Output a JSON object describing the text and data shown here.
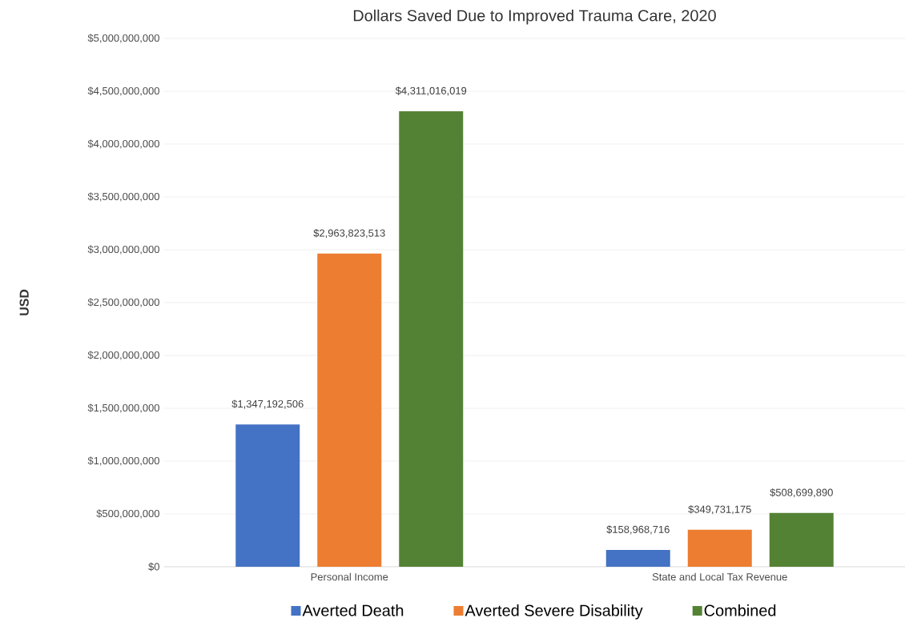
{
  "chart_data": {
    "type": "bar",
    "title": "Dollars Saved Due to Improved Trauma Care, 2020",
    "ylabel": "USD",
    "categories": [
      "Personal Income",
      "State and Local Tax Revenue"
    ],
    "series": [
      {
        "name": "Averted Death",
        "color": "#4472c4",
        "values": [
          1347192506,
          158968716
        ],
        "value_labels": [
          "$1,347,192,506",
          "$158,968,716"
        ]
      },
      {
        "name": "Averted Severe Disability",
        "color": "#ed7d31",
        "values": [
          2963823513,
          349731175
        ],
        "value_labels": [
          "$2,963,823,513",
          "$349,731,175"
        ]
      },
      {
        "name": "Combined",
        "color": "#548235",
        "values": [
          4311016019,
          508699890
        ],
        "value_labels": [
          "$4,311,016,019",
          "$508,699,890"
        ]
      }
    ],
    "ylim": [
      0,
      5000000000
    ],
    "yticks": [
      {
        "value": 0,
        "label": "$0"
      },
      {
        "value": 500000000,
        "label": "$500,000,000"
      },
      {
        "value": 1000000000,
        "label": "$1,000,000,000"
      },
      {
        "value": 1500000000,
        "label": "$1,500,000,000"
      },
      {
        "value": 2000000000,
        "label": "$2,000,000,000"
      },
      {
        "value": 2500000000,
        "label": "$2,500,000,000"
      },
      {
        "value": 3000000000,
        "label": "$3,000,000,000"
      },
      {
        "value": 3500000000,
        "label": "$3,500,000,000"
      },
      {
        "value": 4000000000,
        "label": "$4,000,000,000"
      },
      {
        "value": 4500000000,
        "label": "$4,500,000,000"
      },
      {
        "value": 5000000000,
        "label": "$5,000,000,000"
      }
    ],
    "grid": "y",
    "legend": "bottom"
  }
}
